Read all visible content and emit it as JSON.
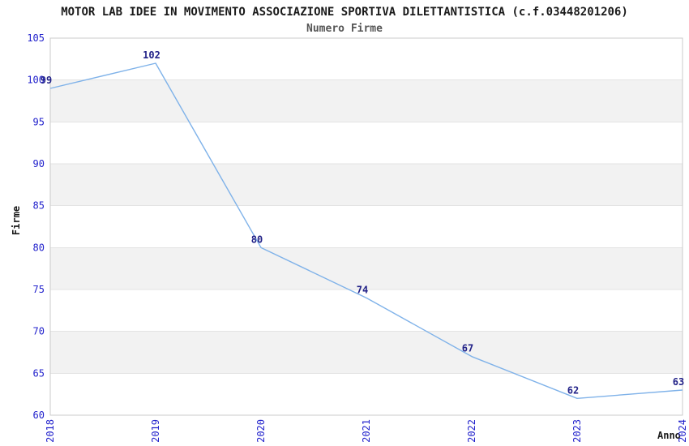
{
  "chart_data": {
    "type": "line",
    "title": "MOTOR LAB IDEE IN MOVIMENTO ASSOCIAZIONE SPORTIVA DILETTANTISTICA (c.f.03448201206)",
    "subtitle": "Numero Firme",
    "xlabel": "Anno",
    "ylabel": "Firme",
    "categories": [
      "2018",
      "2019",
      "2020",
      "2021",
      "2022",
      "2023",
      "2024"
    ],
    "values": [
      99,
      102,
      80,
      74,
      67,
      62,
      63
    ],
    "ylim": [
      60,
      105
    ],
    "ytick_step": 5,
    "grid": "horizontal-alternating-bands",
    "legend": "none",
    "point_labels_visible": true,
    "colors": {
      "line": "#7FB2E9",
      "band_gray": "#F2F2F2",
      "grid_line": "#E3E3E3",
      "plot_border": "#CBCBCB",
      "axis_tick_label": "#2222CC",
      "point_label": "#222288",
      "title": "#1A1A1A",
      "subtitle": "#555555",
      "axis_title": "#1A1A1A",
      "background": "#FFFFFF"
    }
  }
}
